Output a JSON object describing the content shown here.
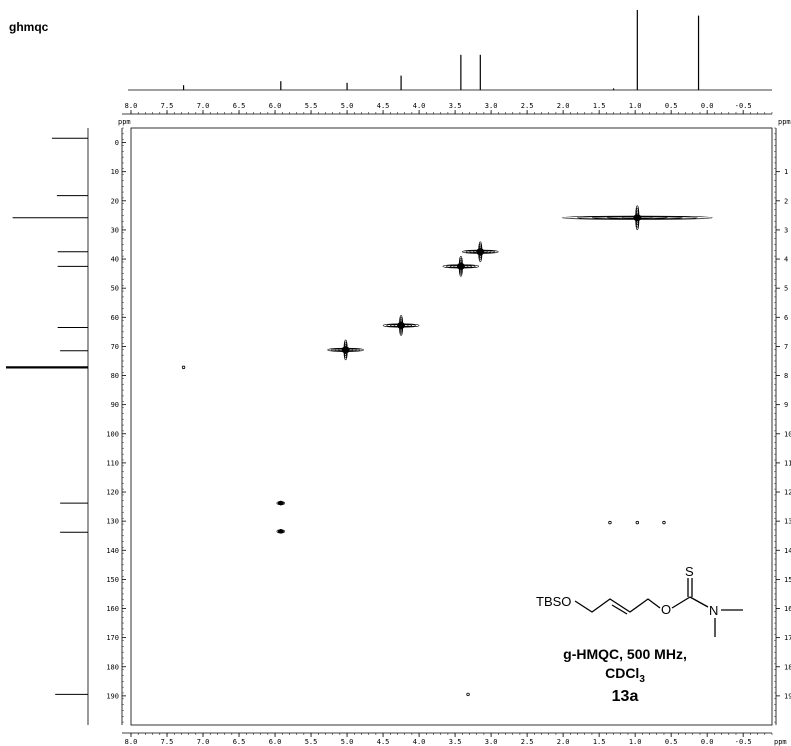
{
  "experiment_label": "ghmqc",
  "chart_data": {
    "type": "scatter",
    "title": "",
    "xlabel": "ppm",
    "ylabel": "ppm",
    "x_unit_label": "ppm",
    "y_unit_label_left": "ppm",
    "y_unit_label_right": "ppm",
    "x_axis": {
      "reversed": true,
      "range": [
        8.0,
        -0.9
      ],
      "ticks": [
        8.0,
        7.5,
        7.0,
        6.5,
        6.0,
        5.5,
        5.0,
        4.5,
        4.0,
        3.5,
        3.0,
        2.5,
        2.0,
        1.5,
        1.0,
        0.5,
        0.0,
        -0.5
      ]
    },
    "y_axis": {
      "reversed": true,
      "range": [
        -5,
        200
      ],
      "ticks": [
        0,
        10,
        20,
        30,
        40,
        50,
        60,
        70,
        80,
        90,
        100,
        110,
        120,
        130,
        140,
        150,
        160,
        170,
        180,
        190
      ]
    },
    "y_ticks_right": [
      "1",
      "2",
      "3",
      "4",
      "5",
      "6",
      "7",
      "8",
      "9",
      "10",
      "11",
      "12",
      "13",
      "14",
      "15",
      "16",
      "17",
      "18",
      "19"
    ],
    "cross_peaks": [
      {
        "x": 0.97,
        "y": 25.8,
        "size": "large"
      },
      {
        "x": 3.15,
        "y": 37.5,
        "size": "medium"
      },
      {
        "x": 3.42,
        "y": 42.5,
        "size": "medium"
      },
      {
        "x": 4.25,
        "y": 62.8,
        "size": "medium"
      },
      {
        "x": 5.02,
        "y": 71.2,
        "size": "medium"
      },
      {
        "x": 5.92,
        "y": 123.8,
        "size": "small"
      },
      {
        "x": 5.92,
        "y": 133.5,
        "size": "small"
      }
    ],
    "artifact_points": [
      {
        "x": 7.27,
        "y": 77.2
      },
      {
        "x": 1.35,
        "y": 130.5
      },
      {
        "x": 0.97,
        "y": 130.5
      },
      {
        "x": 0.6,
        "y": 130.5
      },
      {
        "x": 3.32,
        "y": 189.5
      }
    ],
    "proton_projection": [
      {
        "x": 7.27,
        "h": 0.06
      },
      {
        "x": 5.92,
        "h": 0.11
      },
      {
        "x": 5.0,
        "h": 0.09
      },
      {
        "x": 4.25,
        "h": 0.18
      },
      {
        "x": 3.42,
        "h": 0.44
      },
      {
        "x": 3.15,
        "h": 0.44
      },
      {
        "x": 1.3,
        "h": 0.02
      },
      {
        "x": 0.97,
        "h": 1.0
      },
      {
        "x": 0.12,
        "h": 0.93
      }
    ],
    "carbon_projection": [
      {
        "y": -1.5,
        "h": 0.44
      },
      {
        "y": 18.2,
        "h": 0.38
      },
      {
        "y": 25.8,
        "h": 0.92
      },
      {
        "y": 37.5,
        "h": 0.37
      },
      {
        "y": 42.5,
        "h": 0.37
      },
      {
        "y": 63.5,
        "h": 0.37
      },
      {
        "y": 71.5,
        "h": 0.34
      },
      {
        "y": 77.2,
        "h": 1.0
      },
      {
        "y": 123.8,
        "h": 0.34
      },
      {
        "y": 133.8,
        "h": 0.34
      },
      {
        "y": 189.5,
        "h": 0.4
      }
    ]
  },
  "structure": {
    "tbs_label": "TBSO",
    "oxygen_label": "O",
    "sulfur_label": "S",
    "nitrogen_label": "N"
  },
  "caption": {
    "line1": "g-HMQC, 500 MHz,",
    "line2_main": "CDCl",
    "line2_sub": "3",
    "compound_id": "13a"
  }
}
